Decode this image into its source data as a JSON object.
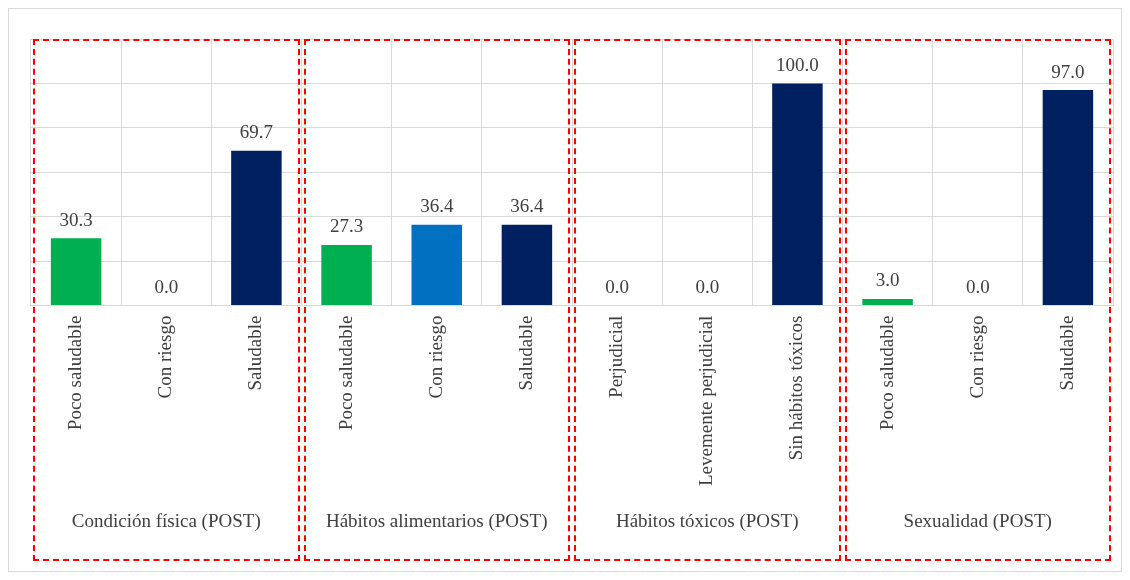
{
  "chart_data": {
    "type": "bar",
    "categories": [
      "Poco saludable",
      "Con riesgo",
      "Saludable",
      "Poco saludable",
      "Con riesgo",
      "Saludable",
      "Perjudicial",
      "Levemente perjudicial",
      "Sin hábitos tóxicos",
      "Poco saludable",
      "Con riesgo",
      "Saludable"
    ],
    "values": [
      30.3,
      0,
      69.7,
      27.3,
      36.4,
      36.4,
      0,
      0,
      100,
      3,
      0,
      97
    ],
    "value_labels": [
      "30.3",
      "0.0",
      "69.7",
      "27.3",
      "36.4",
      "36.4",
      "0.0",
      "0.0",
      "100.0",
      "3.0",
      "0.0",
      "97.0"
    ],
    "colors": [
      "#00b050",
      "#0070c0",
      "#002060",
      "#00b050",
      "#0070c0",
      "#002060",
      "#00b050",
      "#0070c0",
      "#002060",
      "#00b050",
      "#0070c0",
      "#002060"
    ],
    "ylim": [
      0,
      120
    ],
    "yticks": [
      {
        "value": 0,
        "label": null
      },
      {
        "value": 20,
        "label": null
      },
      {
        "value": 40,
        "label": null
      },
      {
        "value": 60,
        "label": null
      },
      {
        "value": 80,
        "label": null
      },
      {
        "value": 100,
        "label": null
      },
      {
        "value": 120,
        "label": null
      }
    ],
    "tick_labels": "x",
    "grid": true,
    "annotations": [
      "Condición física (POST)",
      "Hábitos alimentarios (POST)",
      "Hábitos  tóxicos (POST)",
      "Sexualidad (POST)"
    ]
  }
}
